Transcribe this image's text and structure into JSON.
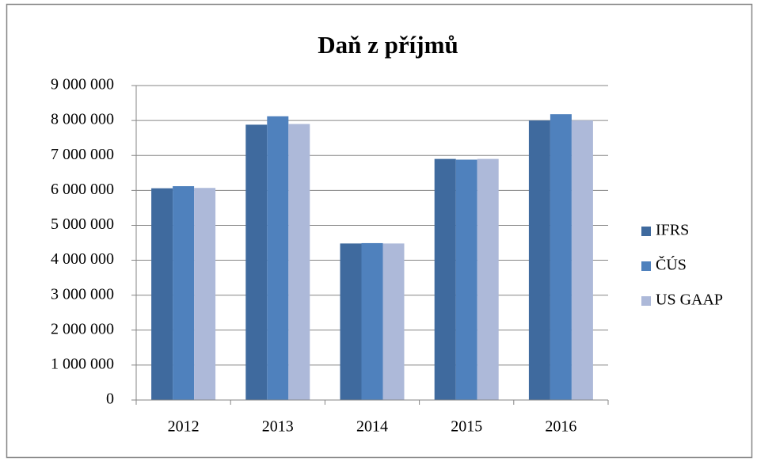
{
  "chart_data": {
    "type": "bar",
    "title": "Daň z příjmů",
    "categories": [
      "2012",
      "2013",
      "2014",
      "2015",
      "2016"
    ],
    "series": [
      {
        "name": "IFRS",
        "color": "#3f6a9e",
        "values": [
          6060000,
          7880000,
          4480000,
          6900000,
          8000000
        ]
      },
      {
        "name": "ČÚS",
        "color": "#4f81bd",
        "values": [
          6120000,
          8120000,
          4490000,
          6880000,
          8180000
        ]
      },
      {
        "name": "US GAAP",
        "color": "#adb9d9",
        "values": [
          6070000,
          7900000,
          4480000,
          6900000,
          8000000
        ]
      }
    ],
    "ylim": [
      0,
      9000000
    ],
    "yticks": [
      {
        "value": 0,
        "label": "0"
      },
      {
        "value": 1000000,
        "label": "1 000 000"
      },
      {
        "value": 2000000,
        "label": "2 000 000"
      },
      {
        "value": 3000000,
        "label": "3 000 000"
      },
      {
        "value": 4000000,
        "label": "4 000 000"
      },
      {
        "value": 5000000,
        "label": "5 000 000"
      },
      {
        "value": 6000000,
        "label": "6 000 000"
      },
      {
        "value": 7000000,
        "label": "7 000 000"
      },
      {
        "value": 8000000,
        "label": "8 000 000"
      },
      {
        "value": 9000000,
        "label": "9 000 000"
      }
    ],
    "grid": true,
    "legend": "right"
  }
}
